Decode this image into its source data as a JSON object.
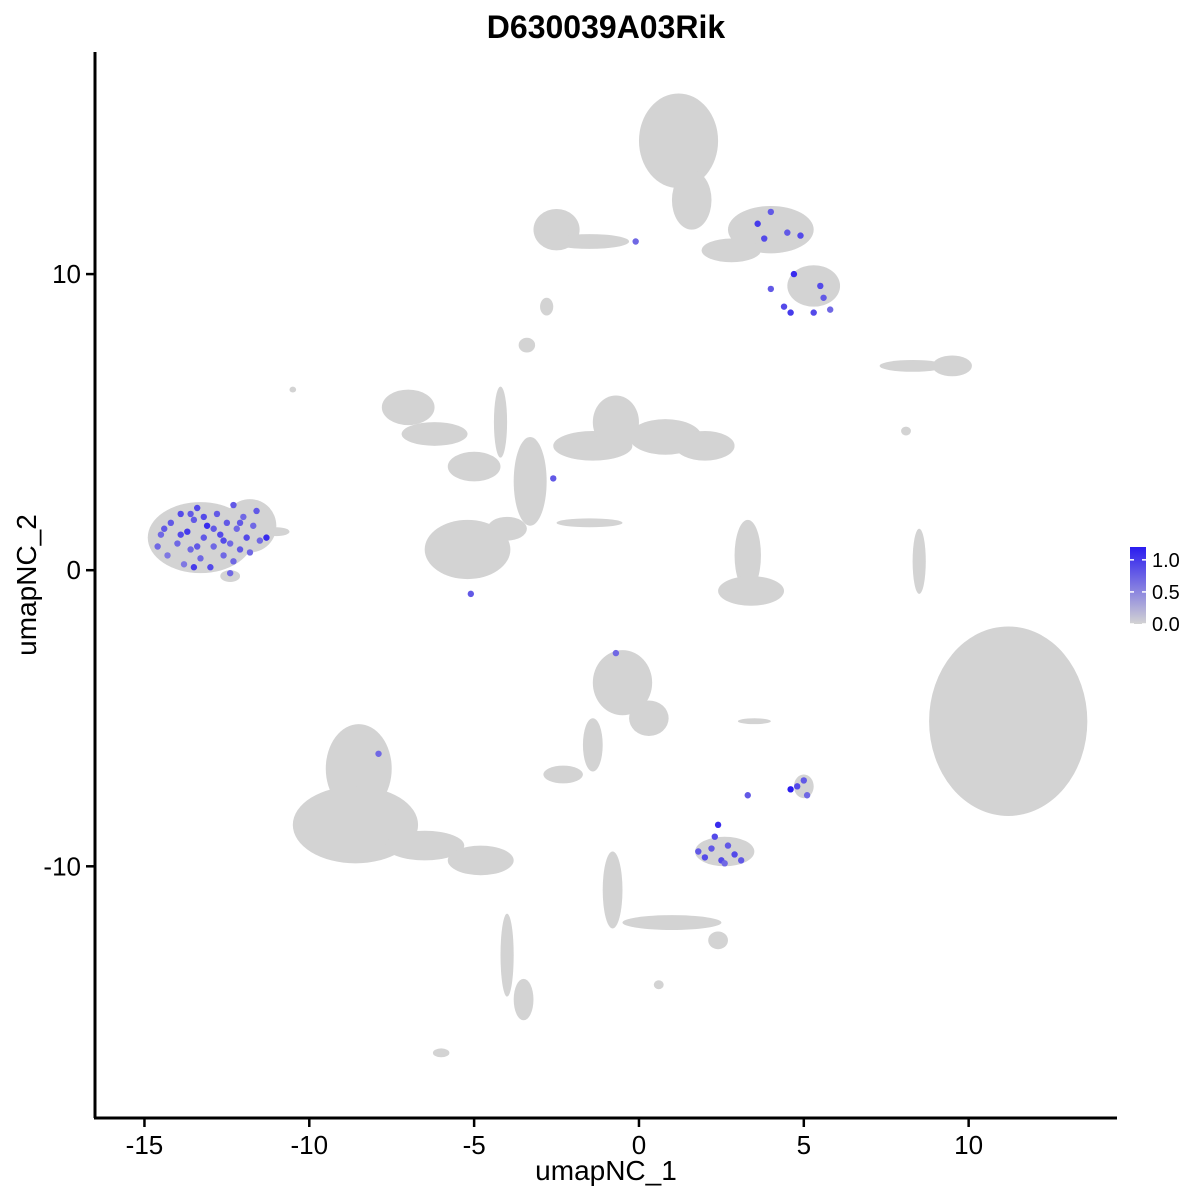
{
  "chart_data": {
    "type": "scatter",
    "title": "D630039A03Rik",
    "xlabel": "umapNC_1",
    "ylabel": "umapNC_2",
    "xlim": [
      -16.5,
      14.5
    ],
    "ylim": [
      -18.5,
      17.5
    ],
    "x_ticks": [
      {
        "value": -15,
        "label": "-15"
      },
      {
        "value": -10,
        "label": "-10"
      },
      {
        "value": -5,
        "label": "-5"
      },
      {
        "value": 0,
        "label": "0"
      },
      {
        "value": 5,
        "label": "5"
      },
      {
        "value": 10,
        "label": "10"
      }
    ],
    "y_ticks": [
      {
        "value": -10,
        "label": "-10"
      },
      {
        "value": 0,
        "label": "0"
      },
      {
        "value": 10,
        "label": "10"
      }
    ],
    "grid": false,
    "legend_placement": "right",
    "colorbar": {
      "min": 0.0,
      "max": 1.2,
      "low_color": "#d3d3d3",
      "high_color": "#2a1cf0",
      "ticks": [
        {
          "value": 0.0,
          "label": "0.0"
        },
        {
          "value": 0.5,
          "label": "0.5"
        },
        {
          "value": 1.0,
          "label": "1.0"
        }
      ]
    },
    "background_clusters": [
      {
        "shape": "ellipse",
        "cx": -13.3,
        "cy": 1.1,
        "rx": 1.6,
        "ry": 1.2
      },
      {
        "shape": "ellipse",
        "cx": -11.8,
        "cy": 1.5,
        "rx": 0.8,
        "ry": 0.9
      },
      {
        "shape": "ellipse",
        "cx": -11.0,
        "cy": 1.3,
        "rx": 0.4,
        "ry": 0.15
      },
      {
        "shape": "ellipse",
        "cx": -12.4,
        "cy": -0.2,
        "rx": 0.3,
        "ry": 0.2
      },
      {
        "shape": "ellipse",
        "cx": 1.2,
        "cy": 14.5,
        "rx": 1.2,
        "ry": 1.6
      },
      {
        "shape": "ellipse",
        "cx": 1.6,
        "cy": 12.5,
        "rx": 0.6,
        "ry": 1.0
      },
      {
        "shape": "ellipse",
        "cx": 4.0,
        "cy": 11.5,
        "rx": 1.3,
        "ry": 0.8
      },
      {
        "shape": "ellipse",
        "cx": 5.3,
        "cy": 9.6,
        "rx": 0.8,
        "ry": 0.7
      },
      {
        "shape": "ellipse",
        "cx": -2.5,
        "cy": 11.5,
        "rx": 0.7,
        "ry": 0.7
      },
      {
        "shape": "ellipse",
        "cx": -1.5,
        "cy": 11.1,
        "rx": 1.2,
        "ry": 0.25
      },
      {
        "shape": "ellipse",
        "cx": 2.8,
        "cy": 10.8,
        "rx": 0.9,
        "ry": 0.4
      },
      {
        "shape": "ellipse",
        "cx": -2.8,
        "cy": 8.9,
        "rx": 0.2,
        "ry": 0.3
      },
      {
        "shape": "ellipse",
        "cx": -7.0,
        "cy": 5.5,
        "rx": 0.8,
        "ry": 0.6
      },
      {
        "shape": "ellipse",
        "cx": -6.2,
        "cy": 4.6,
        "rx": 1.0,
        "ry": 0.4
      },
      {
        "shape": "ellipse",
        "cx": -5.0,
        "cy": 3.5,
        "rx": 0.8,
        "ry": 0.5
      },
      {
        "shape": "ellipse",
        "cx": -5.2,
        "cy": 0.7,
        "rx": 1.3,
        "ry": 1.0
      },
      {
        "shape": "ellipse",
        "cx": -4.0,
        "cy": 1.4,
        "rx": 0.6,
        "ry": 0.4
      },
      {
        "shape": "ellipse",
        "cx": -3.3,
        "cy": 3.0,
        "rx": 0.5,
        "ry": 1.5
      },
      {
        "shape": "ellipse",
        "cx": -4.2,
        "cy": 5.0,
        "rx": 0.2,
        "ry": 1.2
      },
      {
        "shape": "ellipse",
        "cx": -1.5,
        "cy": 1.6,
        "rx": 1.0,
        "ry": 0.15
      },
      {
        "shape": "ellipse",
        "cx": -1.4,
        "cy": 4.2,
        "rx": 1.2,
        "ry": 0.5
      },
      {
        "shape": "ellipse",
        "cx": -0.7,
        "cy": 5.0,
        "rx": 0.7,
        "ry": 0.9
      },
      {
        "shape": "ellipse",
        "cx": 0.8,
        "cy": 4.5,
        "rx": 1.1,
        "ry": 0.6
      },
      {
        "shape": "ellipse",
        "cx": 2.0,
        "cy": 4.2,
        "rx": 0.9,
        "ry": 0.5
      },
      {
        "shape": "ellipse",
        "cx": -3.4,
        "cy": 7.6,
        "rx": 0.25,
        "ry": 0.25
      },
      {
        "shape": "ellipse",
        "cx": 3.3,
        "cy": 0.5,
        "rx": 0.4,
        "ry": 1.2
      },
      {
        "shape": "ellipse",
        "cx": 3.4,
        "cy": -0.7,
        "rx": 1.0,
        "ry": 0.5
      },
      {
        "shape": "ellipse",
        "cx": 8.3,
        "cy": 6.9,
        "rx": 1.0,
        "ry": 0.2
      },
      {
        "shape": "ellipse",
        "cx": 9.5,
        "cy": 6.9,
        "rx": 0.6,
        "ry": 0.35
      },
      {
        "shape": "ellipse",
        "cx": 8.5,
        "cy": 0.3,
        "rx": 0.2,
        "ry": 1.1
      },
      {
        "shape": "ellipse",
        "cx": 11.2,
        "cy": -5.1,
        "rx": 2.4,
        "ry": 3.2
      },
      {
        "shape": "ellipse",
        "cx": -0.5,
        "cy": -3.8,
        "rx": 0.9,
        "ry": 1.1
      },
      {
        "shape": "ellipse",
        "cx": 0.3,
        "cy": -5.0,
        "rx": 0.6,
        "ry": 0.6
      },
      {
        "shape": "ellipse",
        "cx": -1.4,
        "cy": -5.9,
        "rx": 0.3,
        "ry": 0.9
      },
      {
        "shape": "ellipse",
        "cx": -2.3,
        "cy": -6.9,
        "rx": 0.6,
        "ry": 0.3
      },
      {
        "shape": "ellipse",
        "cx": 2.6,
        "cy": -9.5,
        "rx": 0.9,
        "ry": 0.5
      },
      {
        "shape": "ellipse",
        "cx": 5.0,
        "cy": -7.3,
        "rx": 0.3,
        "ry": 0.4
      },
      {
        "shape": "ellipse",
        "cx": 3.5,
        "cy": -5.1,
        "rx": 0.5,
        "ry": 0.1
      },
      {
        "shape": "ellipse",
        "cx": -8.5,
        "cy": -6.7,
        "rx": 1.0,
        "ry": 1.5
      },
      {
        "shape": "ellipse",
        "cx": -8.6,
        "cy": -8.6,
        "rx": 1.9,
        "ry": 1.3
      },
      {
        "shape": "ellipse",
        "cx": -6.5,
        "cy": -9.3,
        "rx": 1.2,
        "ry": 0.5
      },
      {
        "shape": "ellipse",
        "cx": -4.8,
        "cy": -9.8,
        "rx": 1.0,
        "ry": 0.5
      },
      {
        "shape": "ellipse",
        "cx": -4.0,
        "cy": -13.0,
        "rx": 0.2,
        "ry": 1.4
      },
      {
        "shape": "ellipse",
        "cx": -3.5,
        "cy": -14.5,
        "rx": 0.3,
        "ry": 0.7
      },
      {
        "shape": "ellipse",
        "cx": -0.8,
        "cy": -10.8,
        "rx": 0.3,
        "ry": 1.3
      },
      {
        "shape": "ellipse",
        "cx": 1.0,
        "cy": -11.9,
        "rx": 1.5,
        "ry": 0.25
      },
      {
        "shape": "ellipse",
        "cx": 2.4,
        "cy": -12.5,
        "rx": 0.3,
        "ry": 0.3
      },
      {
        "shape": "ellipse",
        "cx": -6.0,
        "cy": -16.3,
        "rx": 0.25,
        "ry": 0.15
      },
      {
        "shape": "ellipse",
        "cx": 0.6,
        "cy": -14.0,
        "rx": 0.15,
        "ry": 0.15
      },
      {
        "shape": "ellipse",
        "cx": -10.5,
        "cy": 6.1,
        "rx": 0.1,
        "ry": 0.1
      },
      {
        "shape": "ellipse",
        "cx": 8.1,
        "cy": 4.7,
        "rx": 0.15,
        "ry": 0.15
      }
    ],
    "expressing_points": [
      {
        "x": -14.5,
        "y": 1.2,
        "value": 0.7
      },
      {
        "x": -14.3,
        "y": 0.5,
        "value": 0.6
      },
      {
        "x": -14.2,
        "y": 1.6,
        "value": 0.8
      },
      {
        "x": -14.0,
        "y": 0.9,
        "value": 0.7
      },
      {
        "x": -13.9,
        "y": 1.9,
        "value": 0.9
      },
      {
        "x": -13.8,
        "y": 0.2,
        "value": 0.6
      },
      {
        "x": -13.7,
        "y": 1.3,
        "value": 1.0
      },
      {
        "x": -13.6,
        "y": 0.7,
        "value": 0.7
      },
      {
        "x": -13.5,
        "y": 1.7,
        "value": 0.8
      },
      {
        "x": -13.4,
        "y": 2.1,
        "value": 0.9
      },
      {
        "x": -13.3,
        "y": 0.4,
        "value": 0.7
      },
      {
        "x": -13.2,
        "y": 1.1,
        "value": 0.8
      },
      {
        "x": -13.1,
        "y": 1.5,
        "value": 1.1
      },
      {
        "x": -13.0,
        "y": 0.1,
        "value": 0.9
      },
      {
        "x": -12.9,
        "y": 0.8,
        "value": 0.7
      },
      {
        "x": -12.8,
        "y": 1.9,
        "value": 0.8
      },
      {
        "x": -12.7,
        "y": 1.2,
        "value": 0.9
      },
      {
        "x": -12.6,
        "y": 0.5,
        "value": 0.7
      },
      {
        "x": -12.5,
        "y": 1.6,
        "value": 0.8
      },
      {
        "x": -12.4,
        "y": 0.9,
        "value": 0.7
      },
      {
        "x": -12.3,
        "y": 2.2,
        "value": 0.8
      },
      {
        "x": -12.2,
        "y": 1.4,
        "value": 0.7
      },
      {
        "x": -12.1,
        "y": 0.7,
        "value": 0.8
      },
      {
        "x": -12.0,
        "y": 1.8,
        "value": 0.7
      },
      {
        "x": -11.9,
        "y": 1.1,
        "value": 0.9
      },
      {
        "x": -11.8,
        "y": 0.6,
        "value": 0.7
      },
      {
        "x": -11.7,
        "y": 1.5,
        "value": 0.7
      },
      {
        "x": -11.6,
        "y": 2.0,
        "value": 0.8
      },
      {
        "x": -11.5,
        "y": 1.0,
        "value": 0.7
      },
      {
        "x": -11.3,
        "y": 1.1,
        "value": 1.1
      },
      {
        "x": -14.6,
        "y": 0.8,
        "value": 0.7
      },
      {
        "x": -14.4,
        "y": 1.4,
        "value": 0.8
      },
      {
        "x": -13.9,
        "y": 1.2,
        "value": 0.9
      },
      {
        "x": -13.6,
        "y": 1.9,
        "value": 0.8
      },
      {
        "x": -13.4,
        "y": 0.8,
        "value": 0.8
      },
      {
        "x": -13.2,
        "y": 1.8,
        "value": 0.9
      },
      {
        "x": -12.9,
        "y": 1.4,
        "value": 0.8
      },
      {
        "x": -12.6,
        "y": 1.0,
        "value": 0.9
      },
      {
        "x": -12.3,
        "y": 0.3,
        "value": 0.7
      },
      {
        "x": -12.1,
        "y": 1.6,
        "value": 0.8
      },
      {
        "x": -12.4,
        "y": -0.1,
        "value": 0.7
      },
      {
        "x": -13.5,
        "y": 0.1,
        "value": 1.0
      },
      {
        "x": 3.6,
        "y": 11.7,
        "value": 1.0
      },
      {
        "x": 4.0,
        "y": 12.1,
        "value": 0.8
      },
      {
        "x": 3.8,
        "y": 11.2,
        "value": 0.9
      },
      {
        "x": 4.5,
        "y": 11.4,
        "value": 0.8
      },
      {
        "x": 4.9,
        "y": 11.3,
        "value": 0.9
      },
      {
        "x": 4.7,
        "y": 10.0,
        "value": 1.1
      },
      {
        "x": 4.0,
        "y": 9.5,
        "value": 0.8
      },
      {
        "x": 4.4,
        "y": 8.9,
        "value": 0.9
      },
      {
        "x": 4.6,
        "y": 8.7,
        "value": 1.0
      },
      {
        "x": 5.5,
        "y": 9.6,
        "value": 0.9
      },
      {
        "x": 5.6,
        "y": 9.2,
        "value": 0.8
      },
      {
        "x": 5.3,
        "y": 8.7,
        "value": 0.9
      },
      {
        "x": 5.8,
        "y": 8.8,
        "value": 0.7
      },
      {
        "x": -0.1,
        "y": 11.1,
        "value": 0.7
      },
      {
        "x": -2.6,
        "y": 3.1,
        "value": 0.8
      },
      {
        "x": -5.1,
        "y": -0.8,
        "value": 0.8
      },
      {
        "x": -0.7,
        "y": -2.8,
        "value": 0.7
      },
      {
        "x": -7.9,
        "y": -6.2,
        "value": 0.7
      },
      {
        "x": 3.3,
        "y": -7.6,
        "value": 0.8
      },
      {
        "x": 2.4,
        "y": -8.6,
        "value": 1.1
      },
      {
        "x": 2.3,
        "y": -9.0,
        "value": 0.9
      },
      {
        "x": 1.8,
        "y": -9.5,
        "value": 0.8
      },
      {
        "x": 2.0,
        "y": -9.7,
        "value": 0.9
      },
      {
        "x": 2.2,
        "y": -9.4,
        "value": 0.8
      },
      {
        "x": 2.5,
        "y": -9.8,
        "value": 0.9
      },
      {
        "x": 2.7,
        "y": -9.3,
        "value": 0.8
      },
      {
        "x": 2.9,
        "y": -9.6,
        "value": 0.9
      },
      {
        "x": 3.1,
        "y": -9.8,
        "value": 0.8
      },
      {
        "x": 2.6,
        "y": -9.9,
        "value": 0.7
      },
      {
        "x": 4.6,
        "y": -7.4,
        "value": 1.2
      },
      {
        "x": 4.8,
        "y": -7.3,
        "value": 0.9
      },
      {
        "x": 5.0,
        "y": -7.1,
        "value": 0.8
      },
      {
        "x": 5.1,
        "y": -7.6,
        "value": 0.7
      }
    ]
  }
}
